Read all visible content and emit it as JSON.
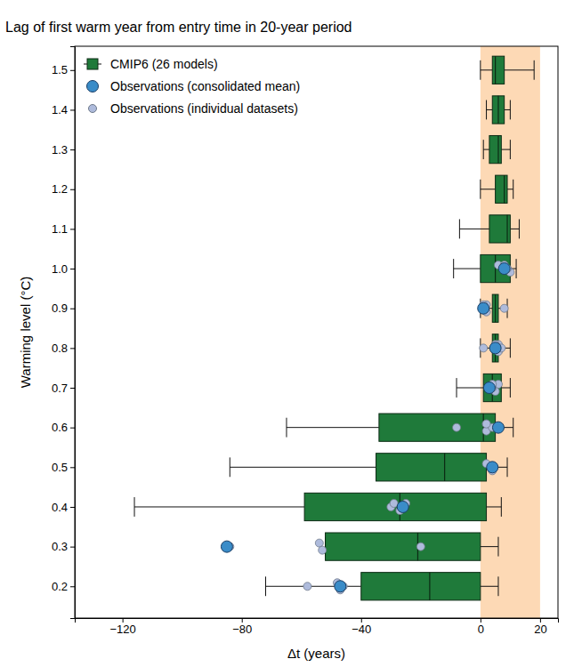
{
  "chart_data": {
    "type": "box",
    "orientation": "horizontal",
    "title": "Lag of first warm year from entry time in 20-year period",
    "x_label": "Δt (years)",
    "y_label": "Warming level (°C)",
    "xlim": [
      -136,
      26
    ],
    "ylim": [
      0.12,
      1.56
    ],
    "xticks": [
      {
        "value": -120,
        "label": "−120"
      },
      {
        "value": -80,
        "label": "−80"
      },
      {
        "value": -40,
        "label": "−40"
      },
      0,
      20
    ],
    "yticks": [
      0.2,
      0.3,
      0.4,
      0.5,
      0.6,
      0.7,
      0.8,
      0.9,
      {
        "value": 1.0,
        "label": "1.0"
      },
      1.1,
      1.2,
      1.3,
      1.4,
      1.5
    ],
    "grid": false,
    "legend": "upper left",
    "band": {
      "from": 0,
      "to": 20,
      "color": "#fdd9b5"
    },
    "y": [
      1.5,
      1.4,
      1.3,
      1.2,
      1.1,
      1.0,
      0.9,
      0.8,
      0.7,
      0.6,
      0.5,
      0.4,
      0.3,
      0.2
    ],
    "series": [
      {
        "name": "CMIP6 (26 models)",
        "type": "box",
        "color": "#1f7a3a",
        "whisker_low": [
          0,
          2,
          1,
          0,
          -7,
          -9,
          0,
          0,
          -8,
          -65,
          -84,
          -116,
          -52,
          -72
        ],
        "q1": [
          4,
          4,
          3,
          5,
          3,
          0,
          4,
          4,
          1,
          -34,
          -35,
          -59,
          -52,
          -40
        ],
        "median": [
          5,
          6,
          6,
          8,
          9,
          5,
          5,
          5,
          4,
          1,
          -12,
          -27,
          -21,
          -17
        ],
        "q3": [
          8,
          8,
          7,
          9,
          10,
          10,
          6,
          6,
          7,
          5,
          2,
          2,
          0,
          0
        ],
        "whisker_high": [
          18,
          10,
          10,
          11,
          13,
          12,
          9,
          10,
          10,
          11,
          9,
          7,
          6,
          6
        ]
      },
      {
        "name": "Observations (consolidated mean)",
        "type": "scatter",
        "marker": "circle",
        "color": "#3a8cc8",
        "values": [
          null,
          null,
          null,
          null,
          null,
          8,
          1,
          5,
          3,
          6,
          4,
          -26,
          -85,
          -47
        ]
      },
      {
        "name": "Observations (individual datasets)",
        "type": "scatter",
        "marker": "circle",
        "color": "#aebbdc",
        "values": [
          null,
          null,
          null,
          null,
          null,
          [
            9,
            6,
            10,
            9,
            8
          ],
          [
            1,
            2,
            2,
            8,
            1
          ],
          [
            1,
            6,
            6,
            7,
            5
          ],
          [
            3,
            6,
            5,
            4,
            4
          ],
          [
            -8,
            2,
            2,
            4,
            2
          ],
          [
            4,
            2,
            4
          ],
          [
            -30,
            -29,
            -27,
            -26,
            -25
          ],
          [
            -84,
            -54,
            -53,
            -20
          ],
          [
            -58,
            -48,
            -47,
            -46
          ]
        ]
      }
    ]
  }
}
